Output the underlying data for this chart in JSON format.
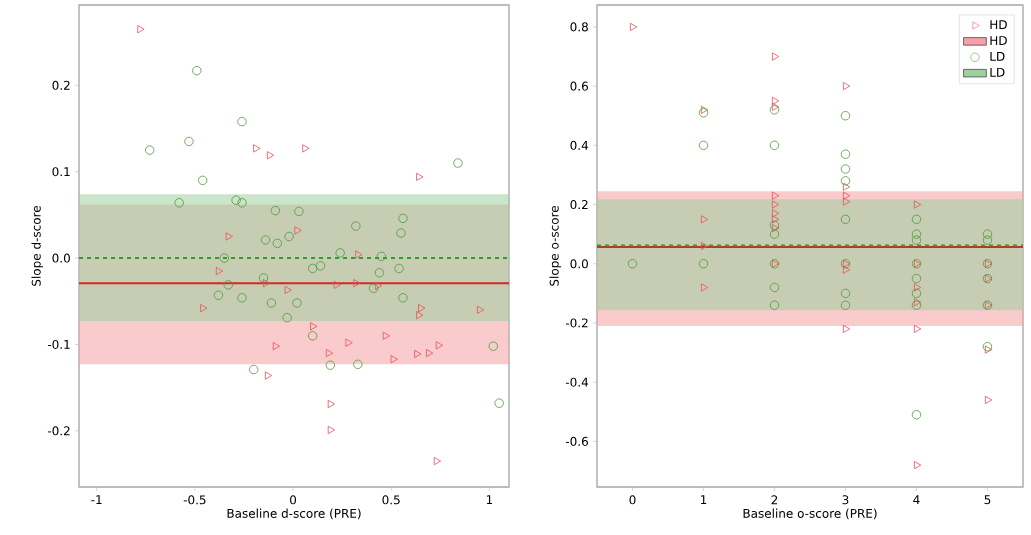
{
  "chart_data": [
    {
      "type": "scatter",
      "xlabel": "Baseline d-score (PRE)",
      "ylabel": "Slope d-score",
      "xlim": [
        -1.09,
        1.1
      ],
      "ylim": [
        -0.265,
        0.293
      ],
      "xticks": [
        -1,
        -0.5,
        0,
        0.5,
        1
      ],
      "yticks": [
        -0.2,
        -0.1,
        {
          "value": 0,
          "label": "0.0"
        },
        0.1,
        0.2
      ],
      "legend": false,
      "grid": false,
      "bands": [
        {
          "axis": "y",
          "from": -0.123,
          "to": 0.062,
          "color": "#f4a0a4"
        },
        {
          "axis": "y",
          "from": -0.073,
          "to": 0.074,
          "color": "#9fd09f"
        }
      ],
      "ref_lines": [
        {
          "axis": "y",
          "value": -0.029,
          "color": "#d62728",
          "line_style": "solid"
        },
        {
          "axis": "y",
          "value": 0.0,
          "color": "#2ca02c",
          "line_style": "dashed"
        }
      ],
      "series": [
        {
          "color": "#e8505b",
          "marker": "triangle",
          "x": [
            -0.78,
            -0.19,
            -0.12,
            0.06,
            0.64,
            -0.46,
            -0.09,
            -0.13,
            0.1,
            0.18,
            0.28,
            0.47,
            0.51,
            0.63,
            0.69,
            0.74,
            0.65,
            0.64,
            0.95,
            0.19,
            0.19,
            0.73,
            -0.33,
            -0.14,
            0.22,
            0.32,
            0.43,
            -0.03,
            0.33,
            -0.38,
            0.02
          ],
          "values": [
            0.265,
            0.127,
            0.119,
            0.127,
            0.094,
            -0.058,
            -0.102,
            -0.136,
            -0.079,
            -0.11,
            -0.098,
            -0.09,
            -0.117,
            -0.111,
            -0.11,
            -0.101,
            -0.058,
            -0.066,
            -0.06,
            -0.169,
            -0.199,
            -0.235,
            0.025,
            -0.029,
            -0.031,
            -0.029,
            -0.032,
            -0.037,
            0.004,
            -0.015,
            0.032
          ]
        },
        {
          "color": "#4a9a3a",
          "marker": "circle",
          "x": [
            -0.49,
            -0.73,
            -0.53,
            -0.26,
            -0.46,
            -0.58,
            -0.29,
            -0.26,
            0.84,
            -0.2,
            0.19,
            0.33,
            0.1,
            1.05,
            1.02,
            0.03,
            -0.09,
            -0.08,
            -0.02,
            0.32,
            0.56,
            0.55,
            -0.14,
            -0.35,
            -0.33,
            -0.38,
            -0.26,
            -0.15,
            -0.11,
            -0.03,
            0.02,
            0.1,
            0.14,
            0.24,
            0.45,
            0.54,
            0.56,
            0.41,
            0.44
          ],
          "values": [
            0.217,
            0.125,
            0.135,
            0.158,
            0.09,
            0.064,
            0.067,
            0.064,
            0.11,
            -0.129,
            -0.124,
            -0.123,
            -0.09,
            -0.168,
            -0.102,
            0.054,
            0.055,
            0.017,
            0.025,
            0.037,
            0.046,
            0.029,
            0.021,
            0.0,
            -0.031,
            -0.043,
            -0.046,
            -0.023,
            -0.052,
            -0.069,
            -0.052,
            -0.012,
            -0.009,
            0.006,
            0.002,
            -0.012,
            -0.046,
            -0.035,
            -0.017
          ]
        }
      ]
    },
    {
      "type": "scatter",
      "xlabel": "Baseline o-score (PRE)",
      "ylabel": "Slope o-score",
      "xlim": [
        -0.5,
        5.5
      ],
      "ylim": [
        -0.754,
        0.874
      ],
      "xticks": [
        0,
        1,
        2,
        3,
        4,
        5
      ],
      "yticks": [
        -0.6,
        -0.4,
        -0.2,
        {
          "value": 0,
          "label": "0.0"
        },
        0.2,
        0.4,
        0.6,
        0.8
      ],
      "legend": "top right",
      "grid": false,
      "bands": [
        {
          "axis": "y",
          "from": -0.21,
          "to": 0.245,
          "label": "HD",
          "color": "#f4a0a4"
        },
        {
          "axis": "y",
          "from": -0.157,
          "to": 0.218,
          "label": "LD",
          "color": "#9fd09f"
        }
      ],
      "ref_lines": [
        {
          "axis": "y",
          "value": 0.057,
          "color": "#d62728",
          "line_style": "solid"
        },
        {
          "axis": "y",
          "value": 0.062,
          "color": "#2ca02c",
          "line_style": "dashed"
        }
      ],
      "series": [
        {
          "name": "HD",
          "color": "#e8505b",
          "marker": "triangle",
          "x": [
            0,
            1,
            1,
            1,
            1,
            2,
            2,
            2,
            2,
            2,
            2,
            2,
            2,
            2,
            3,
            3,
            3,
            3,
            3,
            3,
            3,
            4,
            4,
            4,
            4,
            4,
            4,
            5,
            5,
            5,
            5,
            5
          ],
          "values": [
            0.8,
            0.52,
            0.15,
            0.06,
            -0.08,
            0.7,
            0.55,
            0.53,
            0.23,
            0.2,
            0.17,
            0.15,
            0.12,
            0.0,
            0.6,
            0.26,
            0.23,
            0.21,
            0.0,
            -0.02,
            -0.22,
            0.2,
            -0.22,
            -0.68,
            0.0,
            -0.08,
            -0.13,
            -0.46,
            -0.29,
            0.0,
            -0.05,
            -0.14
          ]
        },
        {
          "name": "LD",
          "color": "#4a9a3a",
          "marker": "circle",
          "x": [
            0,
            1,
            1,
            1,
            2,
            2,
            2,
            2,
            2,
            2,
            2,
            3,
            3,
            3,
            3,
            3,
            3,
            3,
            3,
            4,
            4,
            4,
            4,
            4,
            4,
            4,
            4,
            5,
            5,
            5,
            5,
            5,
            5
          ],
          "values": [
            0.0,
            0.51,
            0.4,
            0.0,
            0.52,
            0.4,
            0.13,
            0.1,
            0.0,
            -0.08,
            -0.14,
            0.5,
            0.37,
            0.32,
            0.28,
            0.15,
            0.0,
            -0.1,
            -0.14,
            0.15,
            0.1,
            0.08,
            0.0,
            -0.05,
            -0.1,
            -0.14,
            -0.51,
            0.1,
            0.08,
            0.0,
            -0.05,
            -0.14,
            -0.28
          ]
        }
      ]
    }
  ]
}
